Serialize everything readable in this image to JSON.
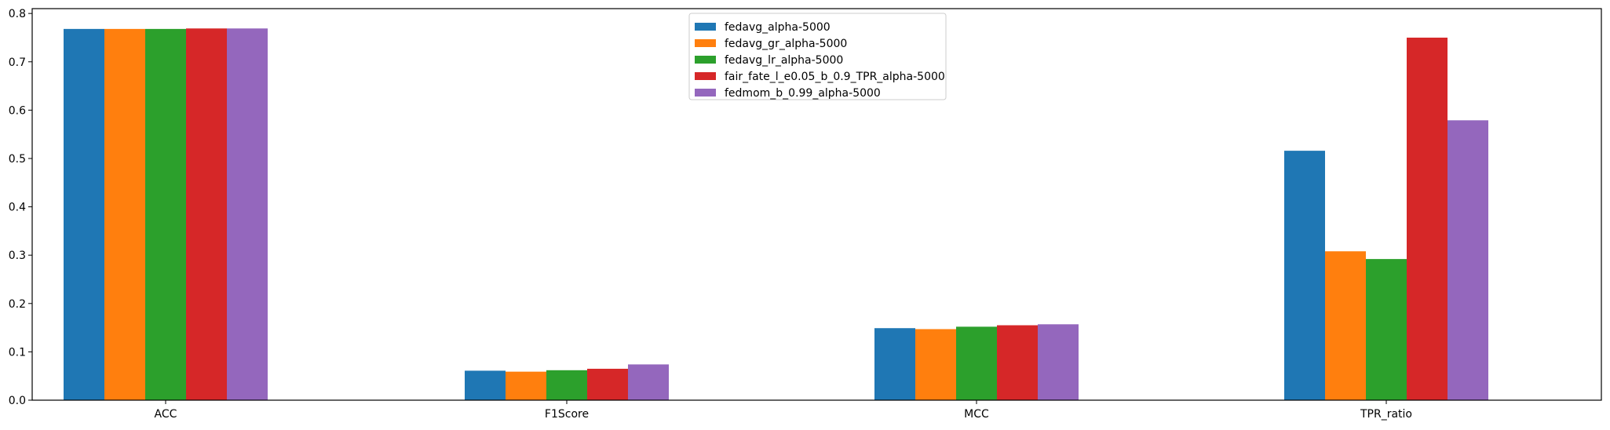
{
  "chart_data": {
    "type": "bar",
    "title": "",
    "xlabel": "",
    "ylabel": "",
    "categories": [
      "ACC",
      "F1Score",
      "MCC",
      "TPR_ratio"
    ],
    "ylim": [
      0,
      0.81
    ],
    "yticks": [
      "0.0",
      "0.1",
      "0.2",
      "0.3",
      "0.4",
      "0.5",
      "0.6",
      "0.7",
      "0.8"
    ],
    "grid": false,
    "legend_position": "top-center",
    "series": [
      {
        "name": "fedavg_alpha-5000",
        "color": "#1f77b4",
        "values": [
          0.768,
          0.061,
          0.149,
          0.516
        ]
      },
      {
        "name": "fedavg_gr_alpha-5000",
        "color": "#ff7f0e",
        "values": [
          0.768,
          0.059,
          0.147,
          0.308
        ]
      },
      {
        "name": "fedavg_lr_alpha-5000",
        "color": "#2ca02c",
        "values": [
          0.768,
          0.062,
          0.152,
          0.292
        ]
      },
      {
        "name": "fair_fate_l_e0.05_b_0.9_TPR_alpha-5000",
        "color": "#d62728",
        "values": [
          0.769,
          0.065,
          0.155,
          0.75
        ]
      },
      {
        "name": "fedmom_b_0.99_alpha-5000",
        "color": "#9467bd",
        "values": [
          0.769,
          0.074,
          0.157,
          0.579
        ]
      }
    ]
  }
}
